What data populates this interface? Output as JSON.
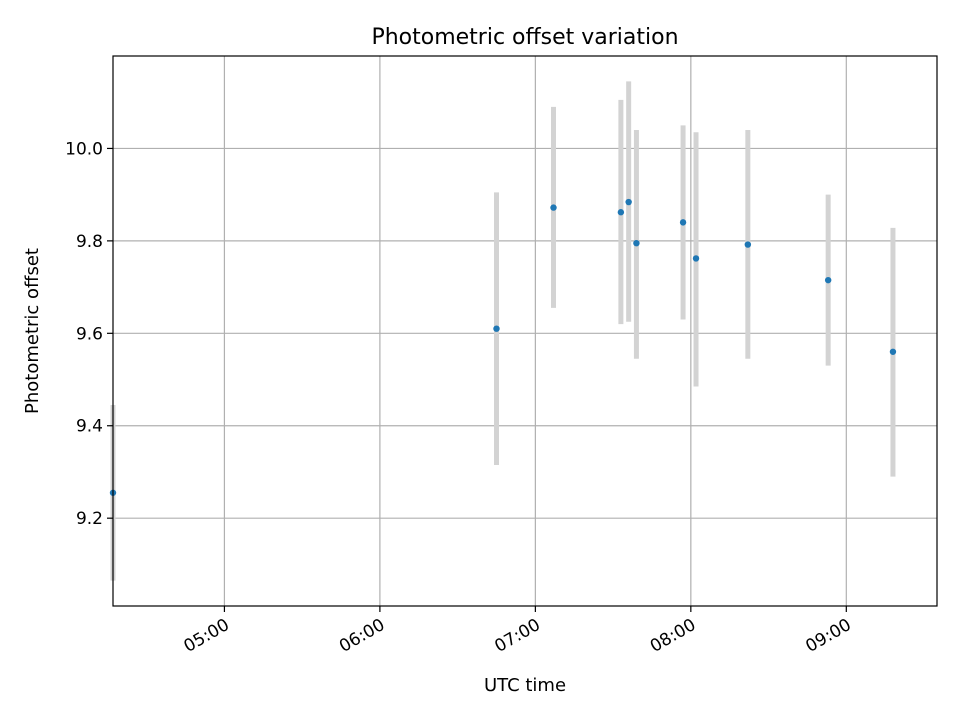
{
  "chart_data": {
    "type": "scatter",
    "title": "Photometric offset variation",
    "xlabel": "UTC time",
    "ylabel": "Photometric offset",
    "x_axis_type": "time",
    "x_range": [
      "04:17",
      "09:35"
    ],
    "ylim": [
      9.01,
      10.2
    ],
    "x_ticks": [
      "05:00",
      "06:00",
      "07:00",
      "08:00",
      "09:00"
    ],
    "y_ticks": [
      9.2,
      9.4,
      9.6,
      9.8,
      10.0
    ],
    "y_tick_labels": [
      "9.2",
      "9.4",
      "9.6",
      "9.8",
      "10.0"
    ],
    "grid": true,
    "colors": {
      "point": "#1f77b4",
      "errorbar": "#d3d3d3",
      "grid": "#b0b0b0"
    },
    "points": [
      {
        "x": "04:17",
        "y": 9.255,
        "y_err_low": 9.065,
        "y_err_high": 9.445
      },
      {
        "x": "06:45",
        "y": 9.61,
        "y_err_low": 9.315,
        "y_err_high": 9.905
      },
      {
        "x": "07:07",
        "y": 9.872,
        "y_err_low": 9.655,
        "y_err_high": 10.09
      },
      {
        "x": "07:33",
        "y": 9.862,
        "y_err_low": 9.62,
        "y_err_high": 10.105
      },
      {
        "x": "07:36",
        "y": 9.884,
        "y_err_low": 9.625,
        "y_err_high": 10.145
      },
      {
        "x": "07:39",
        "y": 9.795,
        "y_err_low": 9.545,
        "y_err_high": 10.04
      },
      {
        "x": "07:57",
        "y": 9.84,
        "y_err_low": 9.63,
        "y_err_high": 10.05
      },
      {
        "x": "08:02",
        "y": 9.762,
        "y_err_low": 9.485,
        "y_err_high": 10.035
      },
      {
        "x": "08:22",
        "y": 9.792,
        "y_err_low": 9.545,
        "y_err_high": 10.04
      },
      {
        "x": "08:53",
        "y": 9.715,
        "y_err_low": 9.53,
        "y_err_high": 9.9
      },
      {
        "x": "09:18",
        "y": 9.56,
        "y_err_low": 9.29,
        "y_err_high": 9.828
      }
    ]
  }
}
